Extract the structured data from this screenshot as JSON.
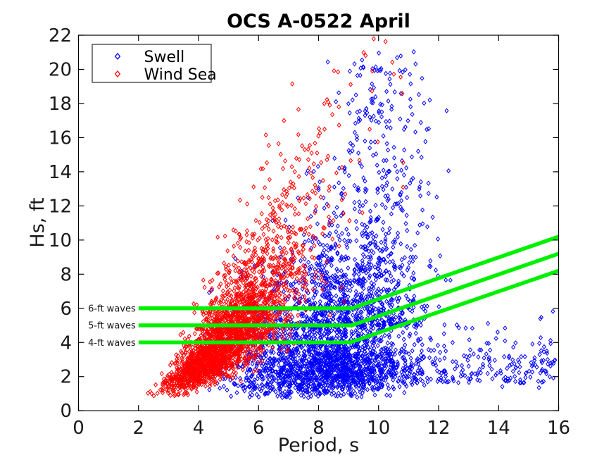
{
  "figure": {
    "background": "#ffffff"
  },
  "chart_data": {
    "type": "scatter",
    "title": "OCS A-0522 April",
    "xlabel": "Period, s",
    "ylabel": "Hs, ft",
    "xlim": [
      0,
      16
    ],
    "ylim": [
      0,
      22
    ],
    "xticks": [
      0,
      2,
      4,
      6,
      8,
      10,
      12,
      14,
      16
    ],
    "yticks": [
      0,
      2,
      4,
      6,
      8,
      10,
      12,
      14,
      16,
      18,
      20,
      22
    ],
    "grid": false,
    "legend": {
      "position": "top-left",
      "entries": [
        {
          "label": "Swell",
          "color": "#0000FF"
        },
        {
          "label": "Wind Sea",
          "color": "#FF0000"
        }
      ]
    },
    "series": [
      {
        "name": "Swell",
        "color": "#0000FF",
        "marker": "open-diamond",
        "seed": 101,
        "clusters": [
          {
            "model": "gauss_logn",
            "n": 1800,
            "t_mean": 8.05,
            "t_sd": 1.4,
            "t_clip": [
              3.3,
              12.9
            ],
            "h_mu": 1.08,
            "h_sigma": 0.56,
            "h_clip": [
              0.75,
              9.0
            ]
          },
          {
            "model": "gauss_pow",
            "n": 470,
            "t_mean": 10.15,
            "t_sd": 0.95,
            "t_clip": [
              7.9,
              12.45
            ],
            "h_base": 5.0,
            "h_range": 16.2,
            "h_pow": 1.7,
            "h_clip": [
              5.0,
              21.2
            ]
          },
          {
            "model": "gauss_logn",
            "n": 430,
            "t_mean": 8.9,
            "t_sd": 1.05,
            "t_clip": [
              6.2,
              12.3
            ],
            "h_mu": 2.0,
            "h_sigma": 0.3,
            "h_clip": [
              3.8,
              14.5
            ]
          },
          {
            "model": "tail",
            "n": 380,
            "t_base": 8.8,
            "t_range": 7.15,
            "t_pow": 1.35,
            "t_clip": [
              8.8,
              15.95
            ],
            "h_base": 0.8,
            "h_mu": 0.55,
            "h_sigma": 0.5,
            "h_clip": [
              0.8,
              6.2
            ]
          }
        ]
      },
      {
        "name": "Wind Sea",
        "color": "#FF0000",
        "marker": "open-diamond",
        "seed": 202,
        "clusters": [
          {
            "model": "steepness",
            "n": 2550,
            "h_mu": 1.45,
            "h_sigma": 0.57,
            "h_clip": [
              0.85,
              21.8
            ],
            "t_coef": 3.05,
            "t_pow": 0.34,
            "t_jitter": 0.13,
            "t_clip": [
              2.05,
              10.9
            ]
          },
          {
            "model": "gauss",
            "n": 7,
            "t_mean": 10.15,
            "t_sd": 0.4,
            "t_clip": [
              9.3,
              10.9
            ],
            "h_mean": 20.2,
            "h_sd": 1.1,
            "h_clip": [
              18.5,
              21.7
            ]
          }
        ]
      }
    ],
    "reference_lines": {
      "color": "#00F000",
      "width": 5.5,
      "lines": [
        {
          "label": "6-ft waves",
          "points": [
            [
              2,
              6
            ],
            [
              9.1,
              6
            ],
            [
              16,
              10.2
            ]
          ]
        },
        {
          "label": "5-ft waves",
          "points": [
            [
              2,
              5
            ],
            [
              9.1,
              5
            ],
            [
              16,
              9.2
            ]
          ]
        },
        {
          "label": "4-ft waves",
          "points": [
            [
              2,
              4
            ],
            [
              9.05,
              4
            ],
            [
              16,
              8.2
            ]
          ]
        }
      ]
    }
  }
}
